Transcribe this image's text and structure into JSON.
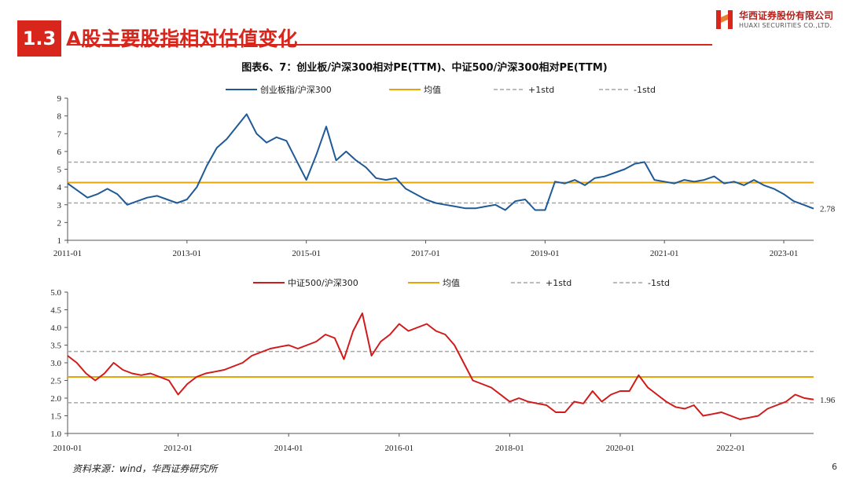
{
  "header": {
    "section_number": "1.3",
    "title": "A股主要股指相对估值变化",
    "logo_cn": "华西证券股份有限公司",
    "logo_en": "HUAXI SECURITIES CO.,LTD."
  },
  "figure_title": "图表6、7：创业板/沪深300相对PE(TTM)、中证500/沪深300相对PE(TTM)",
  "source": "资料来源：wind，华西证券研究所",
  "page_number": "6",
  "colors": {
    "accent": "#d9261c",
    "blue_series": "#1f5a96",
    "red_series": "#d11a1a",
    "mean": "#e5a50a",
    "std": "#a6a6a6"
  },
  "chart_data": [
    {
      "type": "line",
      "x_range": [
        "2011-01",
        "2023-07"
      ],
      "x_ticks": [
        "2011-01",
        "2013-01",
        "2015-01",
        "2017-01",
        "2019-01",
        "2021-01",
        "2023-01"
      ],
      "ylim": [
        1,
        9
      ],
      "y_ticks": [
        "1",
        "2",
        "3",
        "4",
        "5",
        "6",
        "7",
        "8",
        "9"
      ],
      "legend_position": "top",
      "grid": false,
      "series": [
        {
          "name": "创业板指/沪深300",
          "x": [
            "2011-01",
            "2011-03",
            "2011-05",
            "2011-07",
            "2011-09",
            "2011-11",
            "2012-01",
            "2012-03",
            "2012-05",
            "2012-07",
            "2012-09",
            "2012-11",
            "2013-01",
            "2013-03",
            "2013-05",
            "2013-07",
            "2013-09",
            "2013-11",
            "2014-01",
            "2014-03",
            "2014-05",
            "2014-07",
            "2014-09",
            "2014-11",
            "2015-01",
            "2015-03",
            "2015-05",
            "2015-07",
            "2015-09",
            "2015-11",
            "2016-01",
            "2016-03",
            "2016-05",
            "2016-07",
            "2016-09",
            "2016-11",
            "2017-01",
            "2017-03",
            "2017-05",
            "2017-07",
            "2017-09",
            "2017-11",
            "2018-01",
            "2018-03",
            "2018-05",
            "2018-07",
            "2018-09",
            "2018-11",
            "2019-01",
            "2019-03",
            "2019-05",
            "2019-07",
            "2019-09",
            "2019-11",
            "2020-01",
            "2020-03",
            "2020-05",
            "2020-07",
            "2020-09",
            "2020-11",
            "2021-01",
            "2021-03",
            "2021-05",
            "2021-07",
            "2021-09",
            "2021-11",
            "2022-01",
            "2022-03",
            "2022-05",
            "2022-07",
            "2022-09",
            "2022-11",
            "2023-01",
            "2023-03",
            "2023-05",
            "2023-07"
          ],
          "values": [
            4.2,
            3.8,
            3.4,
            3.6,
            3.9,
            3.6,
            3.0,
            3.2,
            3.4,
            3.5,
            3.3,
            3.1,
            3.3,
            4.0,
            5.2,
            6.2,
            6.7,
            7.4,
            8.1,
            7.0,
            6.5,
            6.8,
            6.6,
            5.5,
            4.4,
            5.8,
            7.4,
            5.5,
            6.0,
            5.5,
            5.1,
            4.5,
            4.4,
            4.5,
            3.9,
            3.6,
            3.3,
            3.1,
            3.0,
            2.9,
            2.8,
            2.8,
            2.9,
            3.0,
            2.7,
            3.2,
            3.3,
            2.7,
            2.7,
            4.3,
            4.2,
            4.4,
            4.1,
            4.5,
            4.6,
            4.8,
            5.0,
            5.3,
            5.4,
            4.4,
            4.3,
            4.2,
            4.4,
            4.3,
            4.4,
            4.6,
            4.2,
            4.3,
            4.1,
            4.4,
            4.1,
            3.9,
            3.6,
            3.2,
            3.0,
            2.78
          ]
        },
        {
          "name": "均值",
          "constant": 4.25
        },
        {
          "name": "+1std",
          "constant": 5.4
        },
        {
          "name": "-1std",
          "constant": 3.1
        }
      ],
      "annotations": [
        {
          "text": "2.78",
          "x": "2023-07",
          "y": 2.78
        }
      ]
    },
    {
      "type": "line",
      "x_range": [
        "2010-01",
        "2023-07"
      ],
      "x_ticks": [
        "2010-01",
        "2012-01",
        "2014-01",
        "2016-01",
        "2018-01",
        "2020-01",
        "2022-01"
      ],
      "ylim": [
        1.0,
        5.0
      ],
      "y_ticks": [
        "1.0",
        "1.5",
        "2.0",
        "2.5",
        "3.0",
        "3.5",
        "4.0",
        "4.5",
        "5.0"
      ],
      "legend_position": "top",
      "grid": false,
      "series": [
        {
          "name": "中证500/沪深300",
          "x": [
            "2010-01",
            "2010-03",
            "2010-05",
            "2010-07",
            "2010-09",
            "2010-11",
            "2011-01",
            "2011-03",
            "2011-05",
            "2011-07",
            "2011-09",
            "2011-11",
            "2012-01",
            "2012-03",
            "2012-05",
            "2012-07",
            "2012-09",
            "2012-11",
            "2013-01",
            "2013-03",
            "2013-05",
            "2013-07",
            "2013-09",
            "2013-11",
            "2014-01",
            "2014-03",
            "2014-05",
            "2014-07",
            "2014-09",
            "2014-11",
            "2015-01",
            "2015-03",
            "2015-05",
            "2015-07",
            "2015-09",
            "2015-11",
            "2016-01",
            "2016-03",
            "2016-05",
            "2016-07",
            "2016-09",
            "2016-11",
            "2017-01",
            "2017-03",
            "2017-05",
            "2017-07",
            "2017-09",
            "2017-11",
            "2018-01",
            "2018-03",
            "2018-05",
            "2018-07",
            "2018-09",
            "2018-11",
            "2019-01",
            "2019-03",
            "2019-05",
            "2019-07",
            "2019-09",
            "2019-11",
            "2020-01",
            "2020-03",
            "2020-05",
            "2020-07",
            "2020-09",
            "2020-11",
            "2021-01",
            "2021-03",
            "2021-05",
            "2021-07",
            "2021-09",
            "2021-11",
            "2022-01",
            "2022-03",
            "2022-05",
            "2022-07",
            "2022-09",
            "2022-11",
            "2023-01",
            "2023-03",
            "2023-05",
            "2023-07"
          ],
          "values": [
            3.2,
            3.0,
            2.7,
            2.5,
            2.7,
            3.0,
            2.8,
            2.7,
            2.65,
            2.7,
            2.6,
            2.5,
            2.1,
            2.4,
            2.6,
            2.7,
            2.75,
            2.8,
            2.9,
            3.0,
            3.2,
            3.3,
            3.4,
            3.45,
            3.5,
            3.4,
            3.5,
            3.6,
            3.8,
            3.7,
            3.1,
            3.9,
            4.4,
            3.2,
            3.6,
            3.8,
            4.1,
            3.9,
            4.0,
            4.1,
            3.9,
            3.8,
            3.5,
            3.0,
            2.5,
            2.4,
            2.3,
            2.1,
            1.9,
            2.0,
            1.9,
            1.85,
            1.8,
            1.6,
            1.6,
            1.9,
            1.85,
            2.2,
            1.9,
            2.1,
            2.2,
            2.2,
            2.65,
            2.3,
            2.1,
            1.9,
            1.75,
            1.7,
            1.8,
            1.5,
            1.55,
            1.6,
            1.5,
            1.4,
            1.45,
            1.5,
            1.7,
            1.8,
            1.9,
            2.1,
            2.0,
            1.96
          ]
        },
        {
          "name": "均值",
          "constant": 2.6
        },
        {
          "name": "+1std",
          "constant": 3.32
        },
        {
          "name": "-1std",
          "constant": 1.87
        }
      ],
      "annotations": [
        {
          "text": "1.96",
          "x": "2023-07",
          "y": 1.96
        }
      ]
    }
  ]
}
